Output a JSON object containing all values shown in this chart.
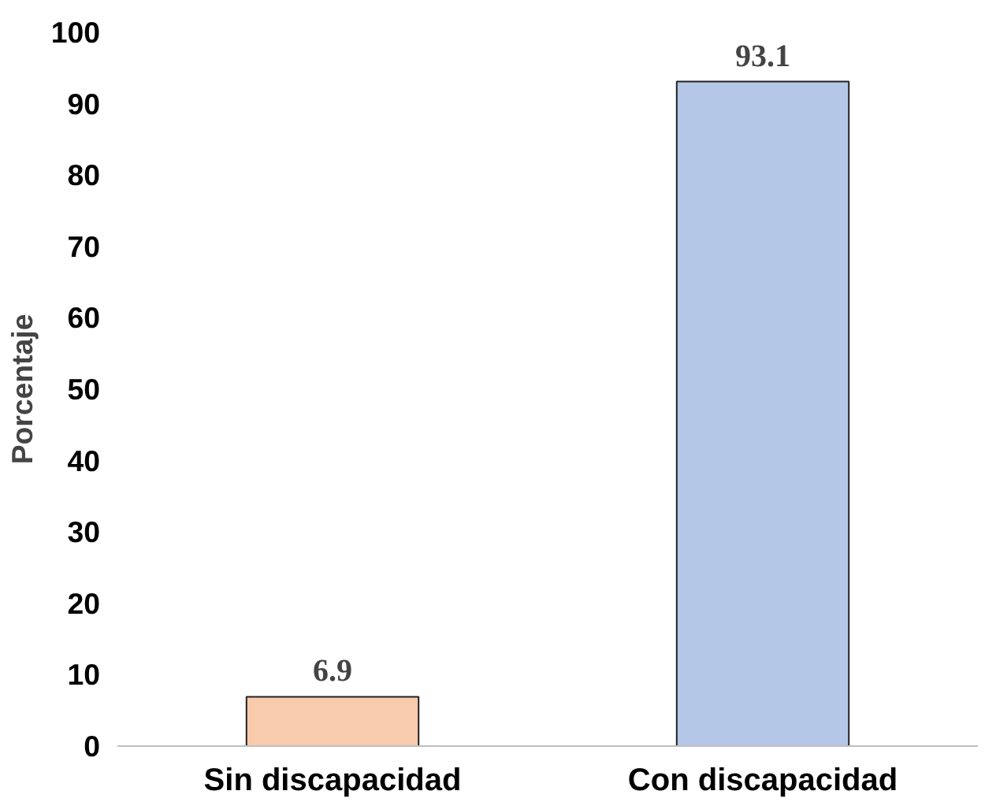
{
  "chart_data": {
    "type": "bar",
    "ylabel": "Porcentaje",
    "categories": [
      "Sin discapacidad",
      "Con discapacidad"
    ],
    "values": [
      6.9,
      93.1
    ],
    "colors": [
      "#f8cbad",
      "#b4c7e7"
    ],
    "ylim": [
      0,
      100
    ],
    "yticks": [
      0,
      10,
      20,
      30,
      40,
      50,
      60,
      70,
      80,
      90,
      100
    ],
    "grid": false,
    "data_labels": true
  }
}
